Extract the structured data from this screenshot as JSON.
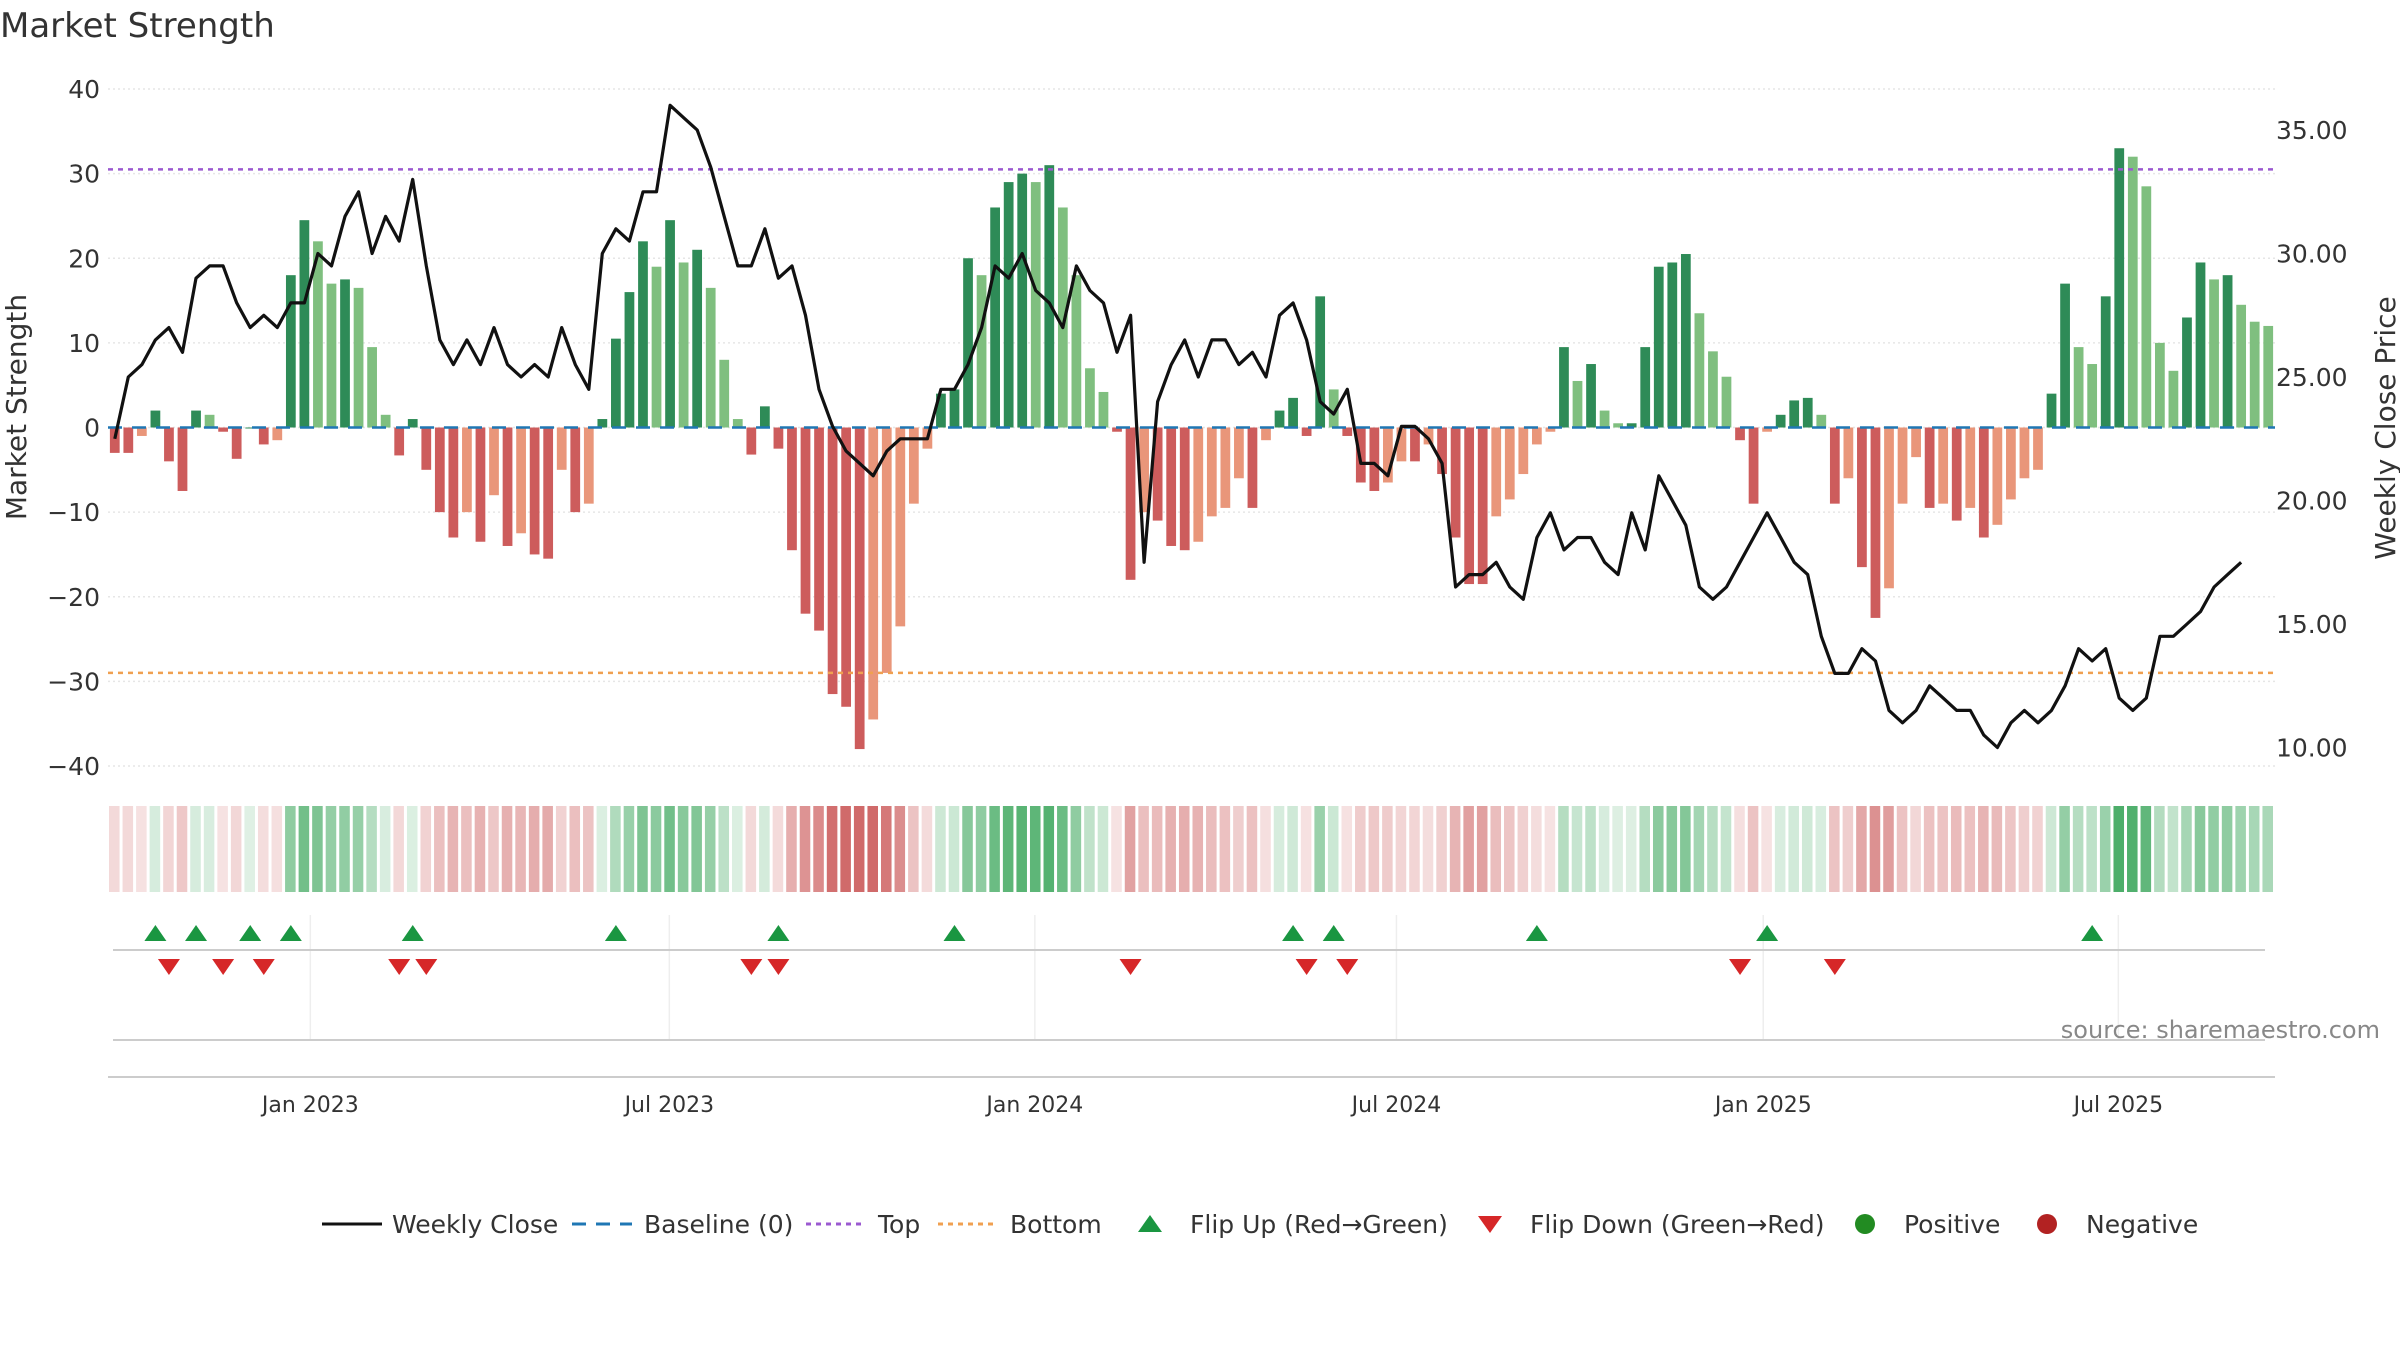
{
  "chart_data": {
    "type": "bar",
    "title": "Market Strength",
    "ylabel_left": "Market Strength",
    "ylabel_right": "Weekly Close Price",
    "ylim_left": [
      -42,
      40
    ],
    "ylim_right": [
      8.6,
      36.5
    ],
    "yticks_left": [
      "40",
      "30",
      "20",
      "10",
      "0",
      "−10",
      "−20",
      "−30",
      "−40"
    ],
    "yticks_left_values": [
      40,
      30,
      20,
      10,
      0,
      -10,
      -20,
      -30,
      -40
    ],
    "yticks_right": [
      "35.00",
      "30.00",
      "25.00",
      "20.00",
      "15.00",
      "10.00"
    ],
    "yticks_right_values": [
      35,
      30,
      25,
      20,
      15,
      10
    ],
    "x_range": [
      0,
      166
    ],
    "xticks": [
      {
        "label": "Jan 2023",
        "index": 15.5
      },
      {
        "label": "Jul 2023",
        "index": 43
      },
      {
        "label": "Jan 2024",
        "index": 71
      },
      {
        "label": "Jul 2024",
        "index": 98.7
      },
      {
        "label": "Jan 2025",
        "index": 126.8
      },
      {
        "label": "Jul 2025",
        "index": 154
      }
    ],
    "top_level": 30.5,
    "bottom_level": -29,
    "strength": [
      -3,
      -3,
      -1,
      2,
      -4,
      -7.5,
      2,
      1.5,
      -0.5,
      -3.7,
      0,
      -2,
      -1.5,
      18,
      24.5,
      22,
      17,
      17.5,
      16.5,
      9.5,
      1.5,
      -3.3,
      1,
      -5,
      -10,
      -13,
      -10,
      -13.5,
      -8,
      -14,
      -12.5,
      -15,
      -15.5,
      -5,
      -10,
      -9,
      1,
      10.5,
      16,
      22,
      19,
      24.5,
      19.5,
      21,
      16.5,
      8,
      1,
      -3.2,
      2.5,
      -2.5,
      -14.5,
      -22,
      -24,
      -31.5,
      -33,
      -38,
      -34.5,
      -29,
      -23.5,
      -9,
      -2.5,
      4,
      4.5,
      20,
      18,
      26,
      29,
      30,
      29,
      31,
      26,
      18,
      7,
      4.2,
      -0.5,
      -18,
      -10,
      -11,
      -14,
      -14.5,
      -13.5,
      -10.5,
      -9.5,
      -6,
      -9.5,
      -1.5,
      2,
      3.5,
      -1,
      15.5,
      4.5,
      -1,
      -6.5,
      -7.5,
      -6.5,
      -4,
      -4,
      -2,
      -5.5,
      -13,
      -18.5,
      -18.5,
      -10.5,
      -8.5,
      -5.5,
      -2,
      -0.5,
      9.5,
      5.5,
      7.5,
      2,
      0.5,
      0.5,
      9.5,
      19,
      19.5,
      20.5,
      13.5,
      9,
      6,
      -1.5,
      -9,
      -0.5,
      1.5,
      3.2,
      3.5,
      1.5,
      -9,
      -6,
      -16.5,
      -22.5,
      -19,
      -9,
      -3.5,
      -9.5,
      -9,
      -11,
      -9.5,
      -13,
      -11.5,
      -8.5,
      -6,
      -5,
      4,
      17,
      9.5,
      7.5,
      15.5,
      33,
      32,
      28.5,
      10,
      6.7,
      13,
      19.5,
      17.5,
      18,
      14.5,
      12.5,
      12
    ],
    "weekly_close": [
      22.5,
      25,
      25.5,
      26.5,
      27,
      26,
      29,
      29.5,
      29.5,
      28,
      27,
      27.5,
      27,
      28,
      28,
      30,
      29.5,
      31.5,
      32.5,
      30,
      31.5,
      30.5,
      33,
      29.5,
      26.5,
      25.5,
      26.5,
      25.5,
      27,
      25.5,
      25,
      25.5,
      25,
      27,
      25.5,
      24.5,
      30,
      31,
      30.5,
      32.5,
      32.5,
      36,
      35.5,
      35,
      33.5,
      31.5,
      29.5,
      29.5,
      31,
      29,
      29.5,
      27.5,
      24.5,
      23,
      22,
      21.5,
      21,
      22,
      22.5,
      22.5,
      22.5,
      24.5,
      24.5,
      25.5,
      27,
      29.5,
      29,
      30,
      28.5,
      28,
      27,
      29.5,
      28.5,
      28,
      26,
      27.5,
      17.5,
      24,
      25.5,
      26.5,
      25,
      26.5,
      26.5,
      25.5,
      26,
      25,
      27.5,
      28,
      26.5,
      24,
      23.5,
      24.5,
      21.5,
      21.5,
      21,
      23,
      23,
      22.5,
      21.5,
      16.5,
      17,
      17,
      17.5,
      16.5,
      16,
      18.5,
      19.5,
      18,
      18.5,
      18.5,
      17.5,
      17,
      19.5,
      18,
      21,
      20,
      19,
      16.5,
      16,
      16.5,
      17.5,
      18.5,
      19.5,
      18.5,
      17.5,
      17,
      14.5,
      13,
      13,
      14,
      13.5,
      11.5,
      11,
      11.5,
      12.5,
      12,
      11.5,
      11.5,
      10.5,
      10,
      11,
      11.5,
      11,
      11.5,
      12.5,
      14,
      13.5,
      14,
      12,
      11.5,
      12,
      14.5,
      14.5,
      15,
      15.5,
      16.5,
      17,
      17.5
    ],
    "flip_up_indices": [
      3,
      6,
      10,
      13,
      22,
      37,
      49,
      62,
      87,
      90,
      105,
      122,
      146
    ],
    "flip_down_indices": [
      4,
      8,
      11,
      21,
      23,
      47,
      49,
      75,
      88,
      91,
      120,
      127
    ],
    "legend": [
      "Weekly Close",
      "Baseline (0)",
      "Top",
      "Bottom",
      "Flip Up (Red→Green)",
      "Flip Down (Green→Red)",
      "Positive",
      "Negative"
    ]
  },
  "colors": {
    "positive_strong": "#2e8b57",
    "positive_light": "#7fbf7f",
    "negative_strong": "#cd5c5c",
    "negative_light": "#e9967a",
    "line": "#111111",
    "baseline": "#1f77b4",
    "top": "#9b59d0",
    "bottom": "#f0a050",
    "flip_up": "#1a9641",
    "flip_down": "#d62728",
    "positive_marker": "#228b22",
    "negative_marker": "#b22222"
  },
  "source": "source: sharemaestro.com"
}
